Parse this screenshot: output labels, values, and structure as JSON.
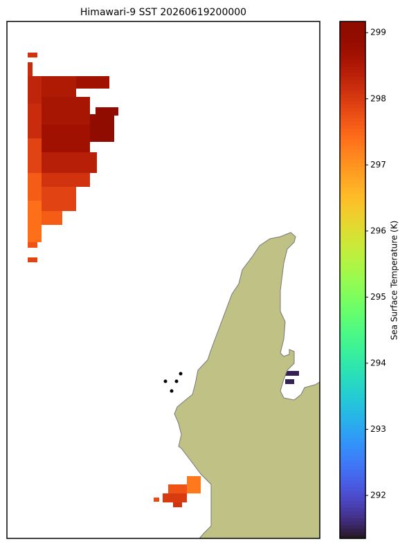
{
  "title": "Himawari-9 SST 20260619200000",
  "colorbar": {
    "label": "Sea Surface Temperature (K)",
    "colormap": "turbo",
    "lim": [
      291.35,
      299.17
    ],
    "ticks": [
      292,
      293,
      294,
      295,
      296,
      297,
      298,
      299
    ]
  },
  "sst_cells": [
    298.1,
    298.2,
    298.3,
    298.5,
    298.7,
    298.6,
    299.0,
    299.1,
    298.2,
    298.7,
    297.9,
    298.4,
    297.6,
    298.1,
    297.9,
    297.4,
    297.6,
    297.7,
    297.9,
    297.3,
    297.7,
    298.0,
    298.1,
    297.8,
    291.5,
    291.5
  ]
}
